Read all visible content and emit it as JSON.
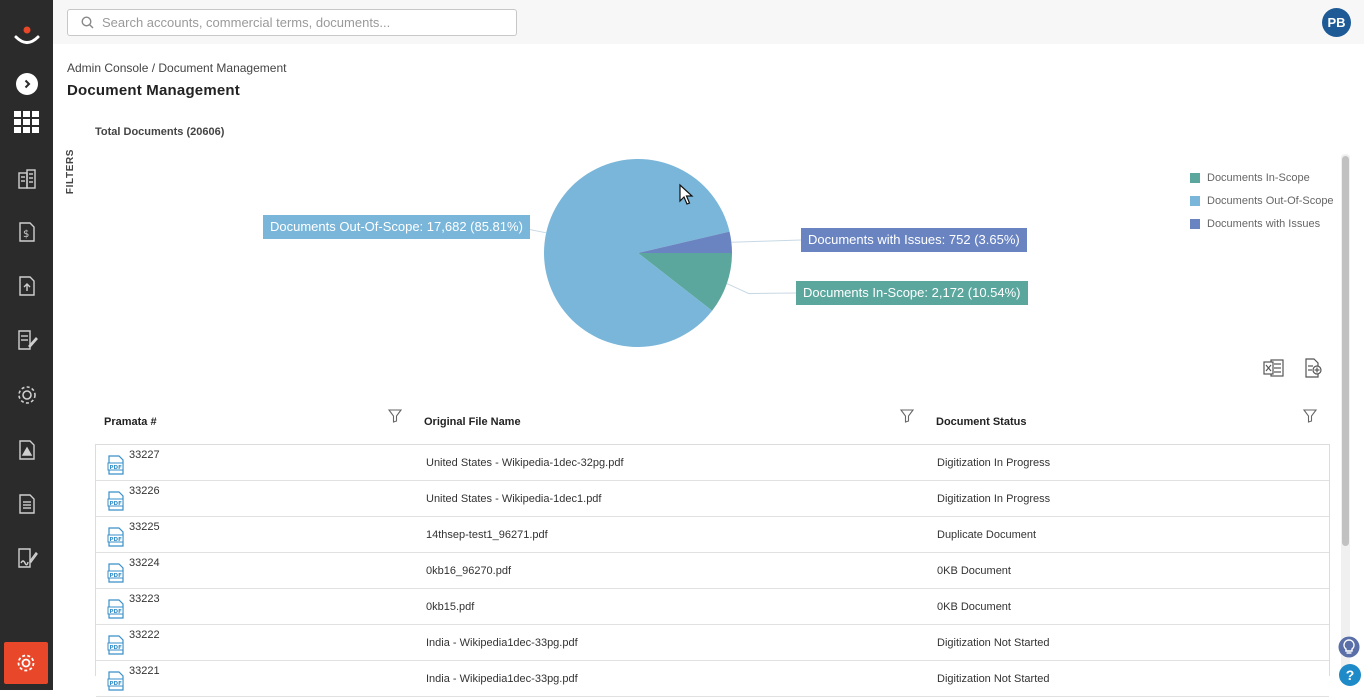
{
  "search": {
    "placeholder": "Search accounts, commercial terms, documents..."
  },
  "user": {
    "initials": "PB"
  },
  "breadcrumb": "Admin Console / Document Management",
  "page_title": "Document Management",
  "filters_label": "FILTERS",
  "colors": {
    "sidebar": "#2b2b2b",
    "accent": "#e8472a",
    "in_scope": "#5ba79e",
    "out_of_scope": "#79b6d9",
    "issues": "#6a84c1"
  },
  "sidebar": {
    "items": [
      {
        "icon": "building-icon"
      },
      {
        "icon": "contract-dollar-icon"
      },
      {
        "icon": "upload-document-icon"
      },
      {
        "icon": "edit-document-icon"
      },
      {
        "icon": "settings-cog-icon"
      },
      {
        "icon": "alert-document-icon"
      },
      {
        "icon": "report-document-icon"
      },
      {
        "icon": "signature-document-icon"
      }
    ]
  },
  "chart_data": {
    "type": "pie",
    "title": "Total Documents (20606)",
    "slices": [
      {
        "label": "Documents In-Scope",
        "value": 2172,
        "percent": 10.54,
        "color": "#5ba79e"
      },
      {
        "label": "Documents Out-Of-Scope",
        "value": 17682,
        "percent": 85.81,
        "color": "#79b6d9"
      },
      {
        "label": "Documents with Issues",
        "value": 752,
        "percent": 3.65,
        "color": "#6a84c1"
      }
    ],
    "data_labels": {
      "out_of_scope": "Documents Out-Of-Scope: 17,682 (85.81%)",
      "issues": "Documents with Issues: 752 (3.65%)",
      "in_scope": "Documents In-Scope: 2,172 (10.54%)"
    },
    "legend": {
      "position": "top-right",
      "entries": [
        "Documents In-Scope",
        "Documents Out-Of-Scope",
        "Documents with Issues"
      ]
    }
  },
  "table": {
    "columns": [
      "Pramata #",
      "Original File Name",
      "Document Status"
    ],
    "rows": [
      {
        "id": "33227",
        "file": "United States - Wikipedia-1dec-32pg.pdf",
        "status": "Digitization In Progress"
      },
      {
        "id": "33226",
        "file": "United States - Wikipedia-1dec1.pdf",
        "status": "Digitization In Progress"
      },
      {
        "id": "33225",
        "file": "14thsep-test1_96271.pdf",
        "status": "Duplicate Document"
      },
      {
        "id": "33224",
        "file": "0kb16_96270.pdf",
        "status": "0KB Document"
      },
      {
        "id": "33223",
        "file": "0kb15.pdf",
        "status": "0KB Document"
      },
      {
        "id": "33222",
        "file": "India - Wikipedia1dec-33pg.pdf",
        "status": "Digitization Not Started"
      },
      {
        "id": "33221",
        "file": "India - Wikipedia1dec-33pg.pdf",
        "status": "Digitization Not Started"
      }
    ]
  },
  "help": {
    "label": "?"
  }
}
